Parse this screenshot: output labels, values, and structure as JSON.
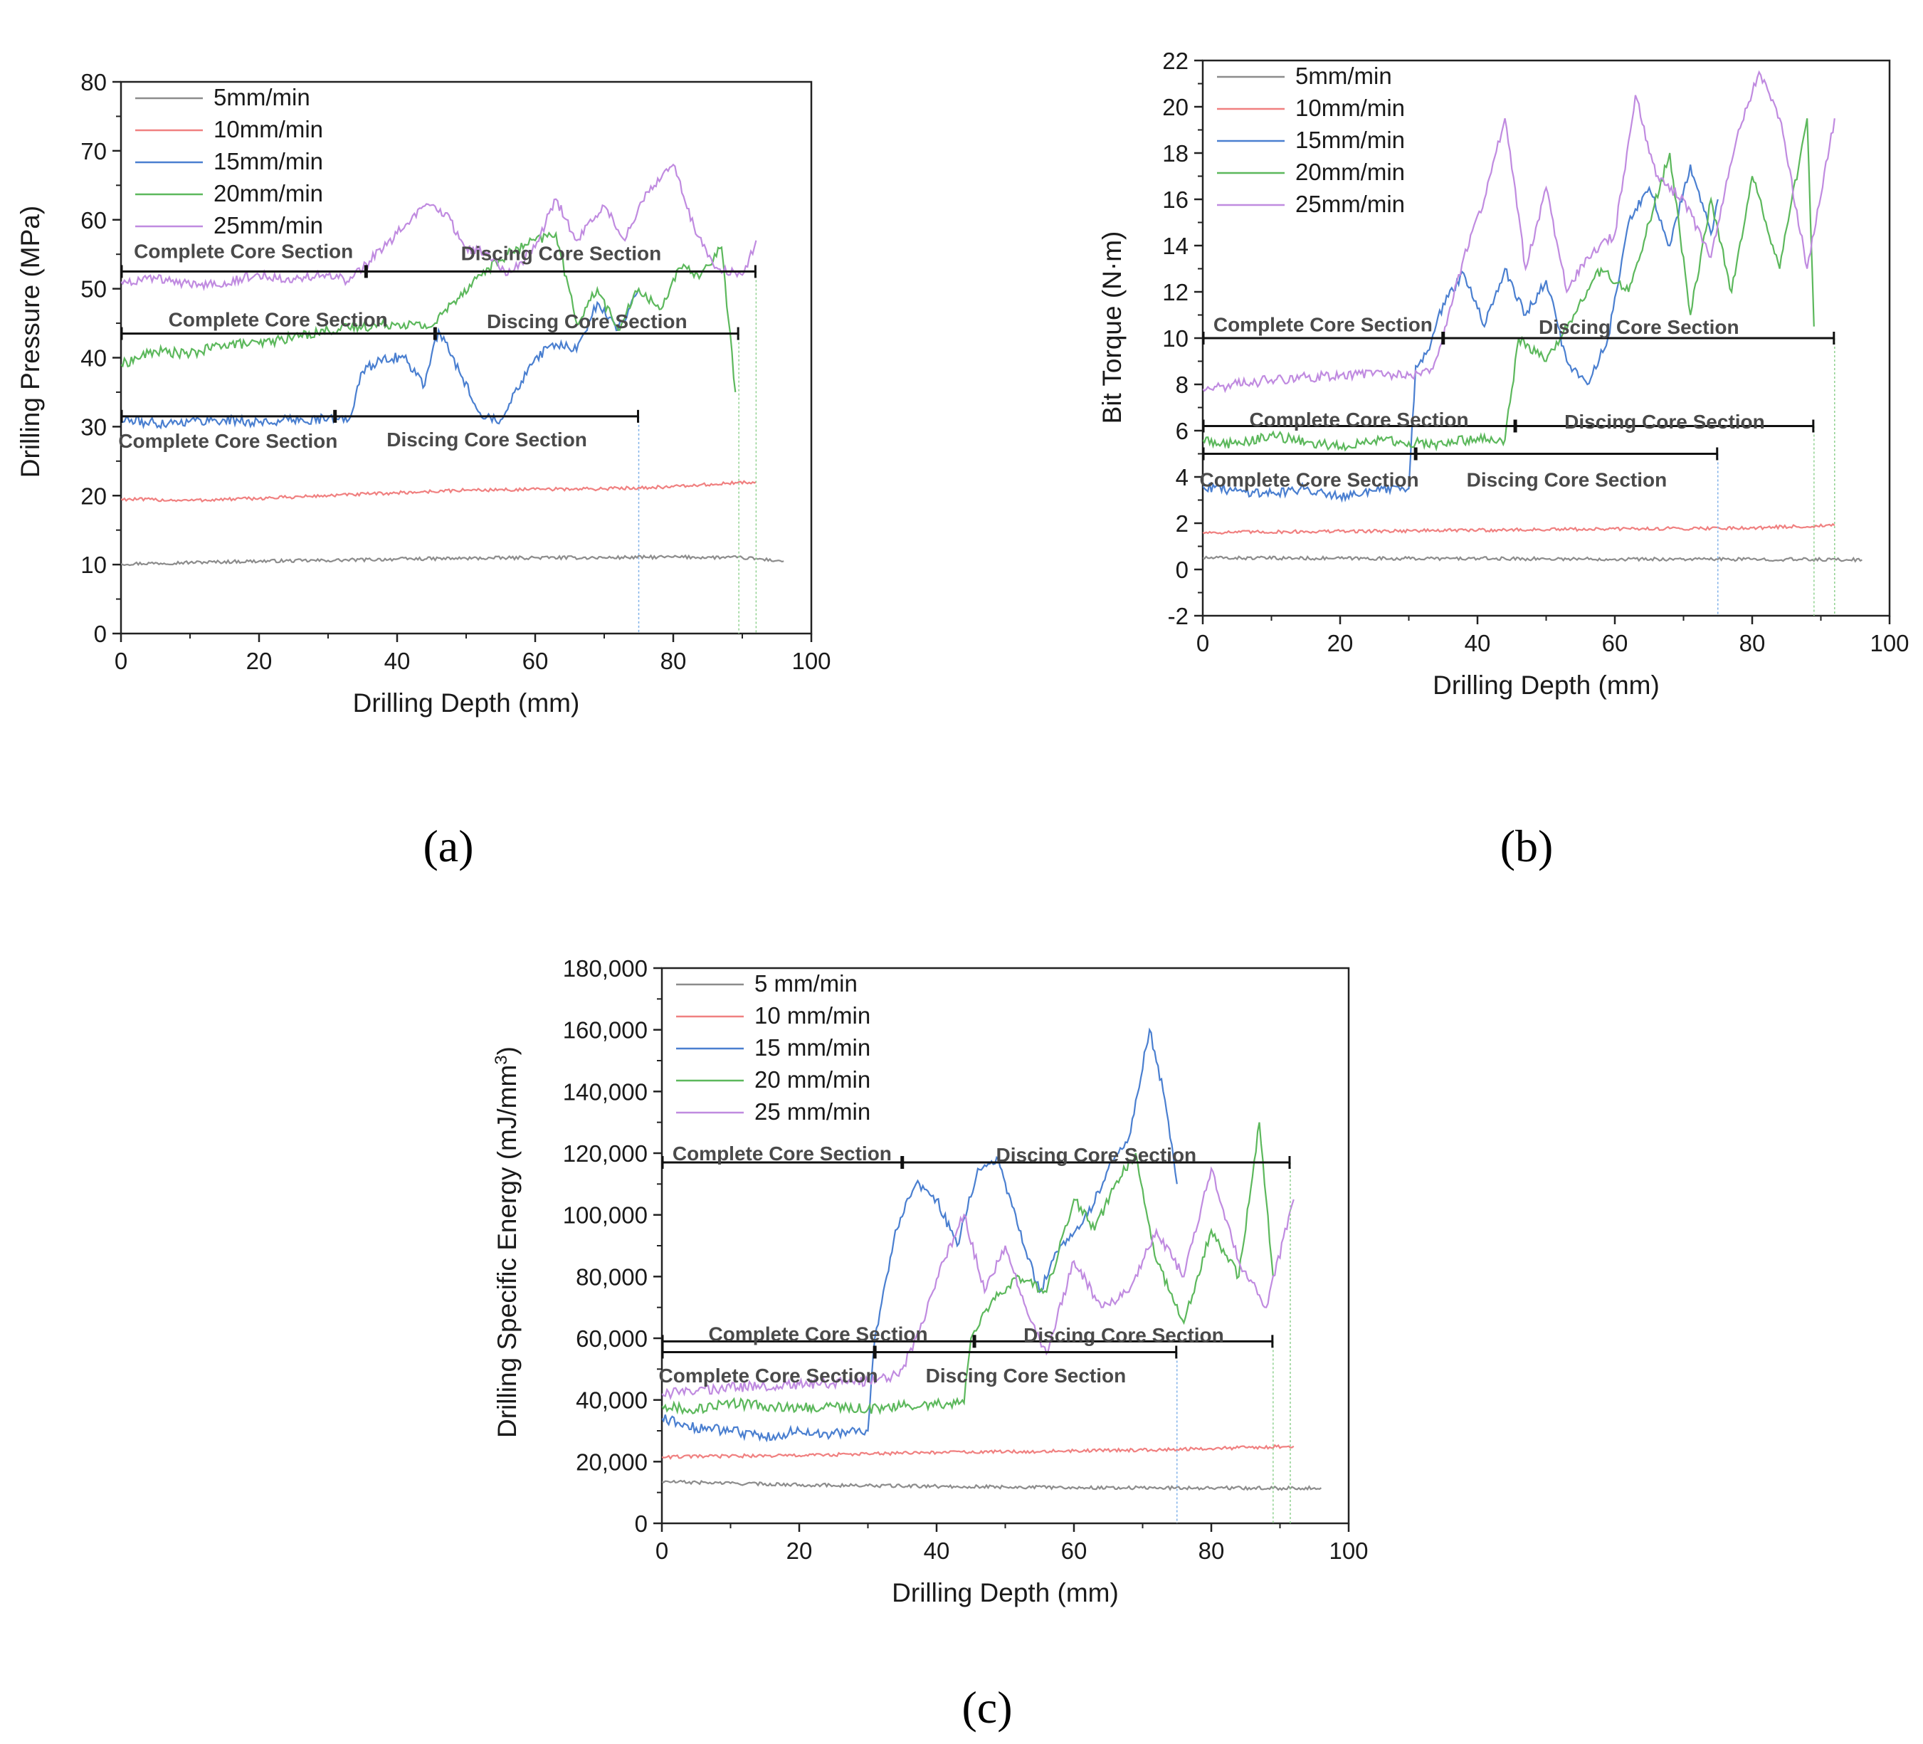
{
  "figure": {
    "panel_labels": [
      "(a)",
      "(b)",
      "(c)"
    ]
  },
  "chart_data": [
    {
      "type": "line",
      "panel": "(a)",
      "xlabel": "Drilling Depth (mm)",
      "ylabel": "Drilling Pressure (MPa)",
      "xlim": [
        0,
        100
      ],
      "ylim": [
        0,
        80
      ],
      "xticks": [
        0,
        20,
        40,
        60,
        80,
        100
      ],
      "yticks": [
        0,
        10,
        20,
        30,
        40,
        50,
        60,
        70,
        80
      ],
      "legend": "top-left",
      "grid": false,
      "series": [
        {
          "name": "5mm/min",
          "color": "#8c8c8c",
          "x": [
            0,
            10,
            20,
            30,
            40,
            50,
            60,
            70,
            80,
            90,
            96
          ],
          "y": [
            10.1,
            10.3,
            10.5,
            10.6,
            10.8,
            10.9,
            11.0,
            11.0,
            11.1,
            11.0,
            10.5
          ]
        },
        {
          "name": "10mm/min",
          "color": "#f08080",
          "x": [
            0,
            10,
            20,
            30,
            40,
            50,
            60,
            70,
            80,
            92
          ],
          "y": [
            19.5,
            19.3,
            19.6,
            20.0,
            20.4,
            20.8,
            20.9,
            21.0,
            21.3,
            22.0
          ]
        },
        {
          "name": "15mm/min",
          "color": "#4a7fd0",
          "x": [
            0,
            5,
            10,
            15,
            20,
            25,
            30,
            33,
            35,
            38,
            41,
            44,
            46,
            49,
            52,
            55,
            57,
            60,
            63,
            66,
            69,
            72,
            75
          ],
          "y": [
            31,
            30.5,
            30.8,
            31,
            30.6,
            31,
            31.2,
            31,
            38,
            40,
            40,
            36,
            44,
            38,
            32,
            31,
            35,
            40,
            42,
            41,
            48,
            44,
            50
          ]
        },
        {
          "name": "20mm/min",
          "color": "#5cb85c",
          "x": [
            0,
            5,
            10,
            15,
            20,
            25,
            30,
            35,
            40,
            45,
            48,
            52,
            56,
            60,
            63,
            66,
            69,
            72,
            75,
            78,
            81,
            84,
            87,
            89
          ],
          "y": [
            39,
            41,
            40.5,
            42,
            42,
            43,
            44,
            44.5,
            45,
            44.5,
            48,
            52,
            55,
            57,
            58,
            45,
            50,
            44,
            50,
            47,
            53,
            52,
            56,
            35
          ]
        },
        {
          "name": "25mm/min",
          "color": "#c08be0",
          "x": [
            0,
            5,
            10,
            15,
            20,
            25,
            30,
            33,
            36,
            40,
            44,
            47,
            50,
            53,
            56,
            60,
            63,
            66,
            70,
            73,
            76,
            80,
            83,
            86,
            90,
            92
          ],
          "y": [
            51,
            51.5,
            50.5,
            51,
            52,
            51.5,
            52,
            51,
            54,
            58,
            62,
            61,
            56,
            55,
            52,
            56,
            63,
            57,
            62,
            57,
            64,
            68,
            59,
            53,
            52,
            57
          ]
        }
      ],
      "annotations": [
        {
          "bar": [
            0,
            35.5
          ],
          "y": 52.5,
          "label": "Complete Core Section",
          "label_y": 55.5,
          "label_pos": "above"
        },
        {
          "bar": [
            35.5,
            92
          ],
          "y": 52.5,
          "label": "Discing Core Section",
          "label_y": 55.2,
          "label_pos": "above"
        },
        {
          "bar": [
            0,
            45.5
          ],
          "y": 43.5,
          "label": "Complete Core Section",
          "label_y": 45.6,
          "label_pos": "above"
        },
        {
          "bar": [
            45.5,
            89.5
          ],
          "y": 43.5,
          "label": "Discing Core Section",
          "label_y": 45.3,
          "label_pos": "above"
        },
        {
          "bar": [
            0,
            31
          ],
          "y": 31.5,
          "label": "Complete Core Section",
          "label_y": 28.0,
          "label_pos": "below"
        },
        {
          "bar": [
            31,
            75
          ],
          "y": 31.5,
          "label": "Discing Core Section",
          "label_y": 28.2,
          "label_pos": "below"
        }
      ]
    },
    {
      "type": "line",
      "panel": "(b)",
      "xlabel": "Drilling Depth (mm)",
      "ylabel": "Bit Torque (N·m)",
      "xlim": [
        0,
        100
      ],
      "ylim": [
        -2,
        22
      ],
      "xticks": [
        0,
        20,
        40,
        60,
        80,
        100
      ],
      "yticks": [
        -2,
        0,
        2,
        4,
        6,
        8,
        10,
        12,
        14,
        16,
        18,
        20,
        22
      ],
      "legend": "top-left",
      "grid": false,
      "series": [
        {
          "name": "5mm/min",
          "color": "#8c8c8c",
          "x": [
            0,
            20,
            40,
            60,
            80,
            96
          ],
          "y": [
            0.5,
            0.48,
            0.47,
            0.45,
            0.44,
            0.42
          ]
        },
        {
          "name": "10mm/min",
          "color": "#f08080",
          "x": [
            0,
            20,
            40,
            60,
            80,
            92
          ],
          "y": [
            1.6,
            1.65,
            1.7,
            1.75,
            1.8,
            1.9
          ]
        },
        {
          "name": "15mm/min",
          "color": "#4a7fd0",
          "x": [
            0,
            5,
            10,
            15,
            20,
            25,
            30,
            31,
            33,
            35,
            38,
            41,
            44,
            47,
            50,
            53,
            56,
            59,
            62,
            65,
            68,
            71,
            74,
            75
          ],
          "y": [
            3.6,
            3.4,
            3.3,
            3.5,
            3.2,
            3.4,
            3.5,
            8.8,
            9.5,
            11.5,
            12.8,
            10.5,
            13.0,
            11.0,
            12.5,
            9.0,
            8.0,
            10.0,
            15.0,
            16.5,
            14.0,
            17.5,
            14.5,
            16.0
          ]
        },
        {
          "name": "20mm/min",
          "color": "#5cb85c",
          "x": [
            0,
            5,
            10,
            15,
            20,
            25,
            30,
            35,
            40,
            44,
            46,
            50,
            54,
            58,
            62,
            65,
            68,
            71,
            74,
            77,
            80,
            84,
            88,
            89
          ],
          "y": [
            5.6,
            5.4,
            5.8,
            5.5,
            5.3,
            5.6,
            5.5,
            5.4,
            5.7,
            5.6,
            10.0,
            9.0,
            11.0,
            13.0,
            12.0,
            15.0,
            18.0,
            11.0,
            16.0,
            12.0,
            17.0,
            13.0,
            19.5,
            10.5
          ]
        },
        {
          "name": "25mm/min",
          "color": "#c08be0",
          "x": [
            0,
            5,
            10,
            15,
            20,
            25,
            30,
            33,
            35,
            38,
            41,
            44,
            47,
            50,
            53,
            56,
            60,
            63,
            66,
            70,
            74,
            78,
            81,
            84,
            88,
            92
          ],
          "y": [
            7.8,
            8.0,
            8.2,
            8.3,
            8.4,
            8.5,
            8.4,
            8.5,
            10.0,
            13.5,
            16.0,
            19.5,
            13.0,
            16.5,
            12.0,
            13.5,
            14.5,
            20.5,
            17.0,
            16.0,
            13.5,
            19.0,
            21.5,
            19.5,
            13.0,
            19.5
          ]
        }
      ],
      "annotations": [
        {
          "bar": [
            0,
            35
          ],
          "y": 10.0,
          "label": "Complete Core Section",
          "label_y": 10.6,
          "label_pos": "above"
        },
        {
          "bar": [
            35,
            92
          ],
          "y": 10.0,
          "label": "Discing Core Section",
          "label_y": 10.5,
          "label_pos": "above"
        },
        {
          "bar": [
            0,
            45.5
          ],
          "y": 6.2,
          "label": "Complete Core Section",
          "label_y": 6.5,
          "label_pos": "above"
        },
        {
          "bar": [
            45.5,
            89
          ],
          "y": 6.2,
          "label": "Discing Core Section",
          "label_y": 6.4,
          "label_pos": "above"
        },
        {
          "bar": [
            0,
            31
          ],
          "y": 5.0,
          "label": "Complete Core Section",
          "label_y": 3.9,
          "label_pos": "below"
        },
        {
          "bar": [
            31,
            75
          ],
          "y": 5.0,
          "label": "Discing Core Section",
          "label_y": 3.9,
          "label_pos": "below"
        }
      ]
    },
    {
      "type": "line",
      "panel": "(c)",
      "xlabel": "Drilling Depth (mm)",
      "ylabel": "Drilling Specific Energy (mJ/mm",
      "ylabel_sup": "3",
      "ylabel_tail": ")",
      "xlim": [
        0,
        100
      ],
      "ylim": [
        0,
        180000
      ],
      "xticks": [
        0,
        20,
        40,
        60,
        80,
        100
      ],
      "yticks": [
        0,
        20000,
        40000,
        60000,
        80000,
        100000,
        120000,
        140000,
        160000,
        180000
      ],
      "ytick_labels": [
        "0",
        "20,000",
        "40,000",
        "60,000",
        "80,000",
        "100,000",
        "120,000",
        "140,000",
        "160,000",
        "180,000"
      ],
      "legend": "top-left",
      "grid": false,
      "series": [
        {
          "name": "5 mm/min",
          "color": "#8c8c8c",
          "x": [
            0,
            10,
            20,
            30,
            40,
            50,
            60,
            70,
            80,
            90,
            96
          ],
          "y": [
            13500,
            13000,
            12500,
            12200,
            12000,
            11800,
            11600,
            11500,
            11500,
            11400,
            11500
          ]
        },
        {
          "name": "10 mm/min",
          "color": "#f08080",
          "x": [
            0,
            10,
            20,
            30,
            40,
            50,
            60,
            70,
            80,
            92
          ],
          "y": [
            21500,
            21800,
            22000,
            22500,
            23000,
            23200,
            23500,
            23800,
            24200,
            25000
          ]
        },
        {
          "name": "15 mm/min",
          "color": "#4a7fd0",
          "x": [
            0,
            5,
            10,
            15,
            20,
            25,
            30,
            31,
            34,
            37,
            40,
            43,
            46,
            49,
            52,
            55,
            58,
            62,
            65,
            68,
            71,
            73,
            75
          ],
          "y": [
            34000,
            31000,
            30000,
            28000,
            30000,
            29000,
            30000,
            60000,
            95000,
            110000,
            105000,
            90000,
            115000,
            118000,
            95000,
            75000,
            90000,
            100000,
            115000,
            125000,
            160000,
            140000,
            110000
          ]
        },
        {
          "name": "20 mm/min",
          "color": "#5cb85c",
          "x": [
            0,
            5,
            10,
            15,
            20,
            25,
            30,
            35,
            40,
            44,
            45,
            48,
            52,
            56,
            60,
            63,
            66,
            69,
            72,
            76,
            80,
            84,
            87,
            89
          ],
          "y": [
            38000,
            37000,
            39000,
            38000,
            37500,
            38000,
            37000,
            38000,
            38500,
            39000,
            60000,
            72000,
            80000,
            75000,
            105000,
            95000,
            110000,
            120000,
            85000,
            65000,
            95000,
            80000,
            130000,
            80000
          ]
        },
        {
          "name": "25 mm/min",
          "color": "#c08be0",
          "x": [
            0,
            5,
            10,
            15,
            20,
            25,
            30,
            33,
            35,
            38,
            41,
            44,
            47,
            50,
            53,
            56,
            60,
            64,
            68,
            72,
            76,
            80,
            84,
            88,
            92
          ],
          "y": [
            42000,
            43000,
            44000,
            44500,
            45000,
            45500,
            46000,
            47000,
            50000,
            65000,
            85000,
            100000,
            75000,
            90000,
            70000,
            55000,
            85000,
            70000,
            75000,
            95000,
            80000,
            115000,
            85000,
            70000,
            105000
          ]
        }
      ],
      "annotations": [
        {
          "bar": [
            0,
            35
          ],
          "y": 117000,
          "label": "Complete Core Section",
          "label_y": 120000,
          "label_pos": "above"
        },
        {
          "bar": [
            35,
            91.5
          ],
          "y": 117000,
          "label": "Discing Core Section",
          "label_y": 119500,
          "label_pos": "above"
        },
        {
          "bar": [
            0,
            45.5
          ],
          "y": 59000,
          "label": "Complete Core Section",
          "label_y": 61500,
          "label_pos": "above"
        },
        {
          "bar": [
            45.5,
            89
          ],
          "y": 59000,
          "label": "Discing Core Section",
          "label_y": 61200,
          "label_pos": "above"
        },
        {
          "bar": [
            0,
            31
          ],
          "y": 55500,
          "label": "Complete Core Section",
          "label_y": 48000,
          "label_pos": "below"
        },
        {
          "bar": [
            31,
            75
          ],
          "y": 55500,
          "label": "Discing Core Section",
          "label_y": 48000,
          "label_pos": "below"
        }
      ]
    }
  ]
}
